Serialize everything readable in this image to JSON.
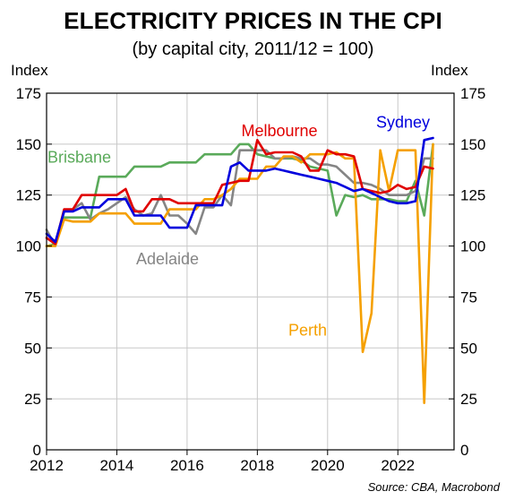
{
  "chart_data": {
    "type": "line",
    "title": "ELECTRICITY PRICES IN THE CPI",
    "subtitle": "(by capital city, 2011/12 = 100)",
    "ylabel_left": "Index",
    "ylabel_right": "Index",
    "source": "Source: CBA, Macrobond",
    "xlim": [
      2012.0,
      2023.6
    ],
    "ylim": [
      0,
      175
    ],
    "x_ticks": [
      2012,
      2014,
      2016,
      2018,
      2020,
      2022
    ],
    "x_tick_labels": [
      "2012",
      "2014",
      "2016",
      "2018",
      "2020",
      "2022"
    ],
    "y_ticks": [
      0,
      25,
      50,
      75,
      100,
      125,
      150,
      175
    ],
    "y_tick_labels": [
      "0",
      "25",
      "50",
      "75",
      "100",
      "125",
      "150",
      "175"
    ],
    "grid": true,
    "x": [
      2012.0,
      2012.25,
      2012.5,
      2012.75,
      2013.0,
      2013.25,
      2013.5,
      2013.75,
      2014.0,
      2014.25,
      2014.5,
      2014.75,
      2015.0,
      2015.25,
      2015.5,
      2015.75,
      2016.0,
      2016.25,
      2016.5,
      2016.75,
      2017.0,
      2017.25,
      2017.5,
      2017.75,
      2018.0,
      2018.25,
      2018.5,
      2018.75,
      2019.0,
      2019.25,
      2019.5,
      2019.75,
      2020.0,
      2020.25,
      2020.5,
      2020.75,
      2021.0,
      2021.25,
      2021.5,
      2021.75,
      2022.0,
      2022.25,
      2022.5,
      2022.75,
      2023.0
    ],
    "series": [
      {
        "name": "Sydney",
        "color": "#0000dd",
        "label_position": "top-right",
        "values": [
          106,
          102,
          117,
          117,
          119,
          119,
          119,
          123,
          123,
          123,
          115,
          115,
          115,
          115,
          109,
          109,
          109,
          120,
          120,
          120,
          120,
          139,
          141,
          137,
          137,
          137,
          138,
          137,
          136,
          135,
          134,
          133,
          132,
          131,
          129,
          127,
          128,
          126,
          124,
          122,
          121,
          121,
          122,
          152,
          153
        ]
      },
      {
        "name": "Melbourne",
        "color": "#e00000",
        "label_position": "top-center",
        "values": [
          104,
          101,
          118,
          118,
          125,
          125,
          125,
          125,
          125,
          128,
          117,
          117,
          123,
          123,
          123,
          121,
          121,
          121,
          121,
          121,
          130,
          131,
          132,
          132,
          152,
          145,
          146,
          146,
          146,
          144,
          137,
          137,
          147,
          145,
          145,
          144,
          128,
          127,
          126,
          127,
          130,
          128,
          129,
          139,
          138
        ]
      },
      {
        "name": "Brisbane",
        "color": "#5aaa5a",
        "label_position": "top-left",
        "values": [
          100,
          101,
          114,
          114,
          114,
          114,
          134,
          134,
          134,
          134,
          139,
          139,
          139,
          139,
          141,
          141,
          141,
          141,
          145,
          145,
          145,
          145,
          150,
          150,
          145,
          144,
          143,
          143,
          143,
          142,
          139,
          138,
          137,
          115,
          125,
          124,
          125,
          123,
          123,
          123,
          122,
          122,
          132,
          115,
          150
        ]
      },
      {
        "name": "Perth",
        "color": "#f5a000",
        "label_position": "bottom-right",
        "values": [
          100,
          100,
          113,
          112,
          112,
          112,
          116,
          116,
          116,
          116,
          111,
          111,
          111,
          111,
          118,
          118,
          118,
          118,
          123,
          123,
          125,
          128,
          133,
          133,
          133,
          139,
          139,
          144,
          144,
          141,
          145,
          145,
          145,
          146,
          143,
          143,
          48,
          67,
          147,
          127,
          147,
          147,
          147,
          23,
          150
        ]
      },
      {
        "name": "Adelaide",
        "color": "#858585",
        "label_position": "middle-left",
        "values": [
          108,
          100,
          117,
          118,
          121,
          113,
          116,
          118,
          121,
          124,
          118,
          115,
          116,
          125,
          115,
          115,
          111,
          106,
          119,
          119,
          125,
          120,
          147,
          147,
          147,
          147,
          143,
          143,
          144,
          143,
          143,
          140,
          140,
          139,
          135,
          131,
          131,
          130,
          128,
          125,
          125,
          125,
          127,
          143,
          143
        ]
      }
    ]
  }
}
